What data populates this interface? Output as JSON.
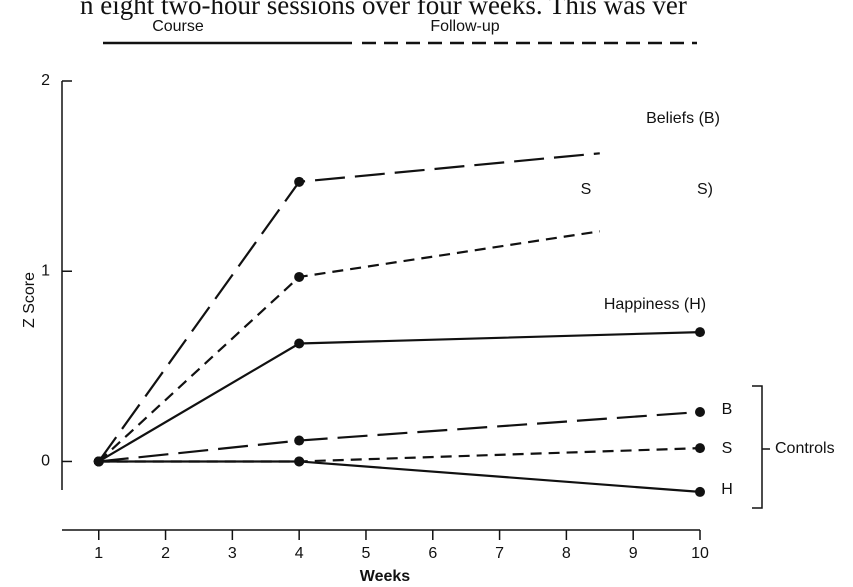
{
  "caption": "n eight two-hour sessions over four weeks.  This was ver",
  "chart_data": {
    "type": "line",
    "ylabel": "Z Score",
    "xlabel": "Weeks",
    "phases": [
      "Course",
      "Follow-up"
    ],
    "annotations": [
      "Beliefs (B)",
      "S",
      "S)",
      "Happiness (H)",
      "B",
      "S",
      "H",
      "Controls"
    ],
    "series": [
      {
        "color": "#111",
        "dash": "long",
        "x": [
          1,
          4,
          8.5
        ],
        "values": [
          0,
          1.47,
          1.62
        ]
      },
      {
        "color": "#111",
        "dash": "short",
        "x": [
          1,
          4,
          8.5
        ],
        "values": [
          0,
          0.97,
          1.21
        ]
      },
      {
        "color": "#111",
        "dash": "solid",
        "x": [
          1,
          4,
          10
        ],
        "values": [
          0,
          0.62,
          0.68
        ]
      },
      {
        "color": "#111",
        "dash": "long",
        "x": [
          1,
          4,
          10
        ],
        "values": [
          0,
          0.11,
          0.26
        ]
      },
      {
        "color": "#111",
        "dash": "short",
        "x": [
          1,
          4,
          10
        ],
        "values": [
          0,
          0,
          0.07
        ]
      },
      {
        "color": "#111",
        "dash": "solid",
        "x": [
          1,
          4,
          10
        ],
        "values": [
          0,
          0,
          -0.16
        ]
      }
    ],
    "xlim": [
      0.45,
      10
    ],
    "xticks": [
      1,
      2,
      3,
      4,
      5,
      6,
      7,
      8,
      9,
      10
    ],
    "ylim": [
      -0.15,
      2
    ],
    "yticks": [
      0,
      1,
      2
    ]
  }
}
